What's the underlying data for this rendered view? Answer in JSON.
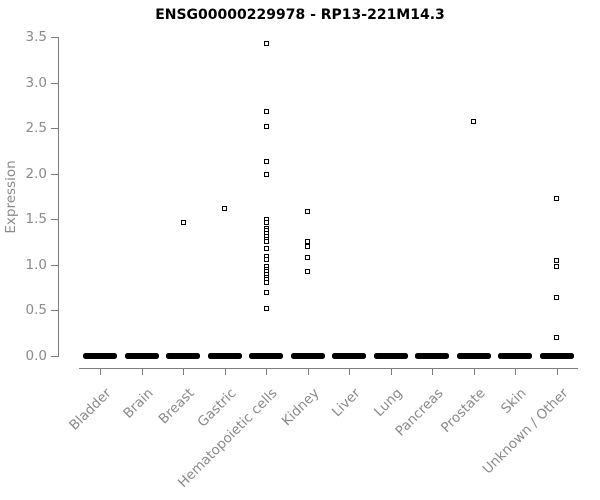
{
  "chart_data": {
    "type": "scatter",
    "title": "ENSG00000229978 - RP13-221M14.3",
    "xlabel": "",
    "ylabel": "Expression",
    "ylim": [
      0,
      3.5
    ],
    "yticks": [
      0.0,
      0.5,
      1.0,
      1.5,
      2.0,
      2.5,
      3.0,
      3.5
    ],
    "grid": false,
    "legend": "none",
    "point_shape": "open-square",
    "point_color": "#000000",
    "axis_color": "#7d7d7d",
    "text_color": "#8a8a8a",
    "note": "each category shows a dense cluster of points at expression 0 forming a solid bar",
    "categories": [
      {
        "label": "Bladder",
        "zero_cluster": true,
        "nonzero_points": []
      },
      {
        "label": "Brain",
        "zero_cluster": true,
        "nonzero_points": []
      },
      {
        "label": "Breast",
        "zero_cluster": true,
        "nonzero_points": [
          1.46
        ]
      },
      {
        "label": "Gastric",
        "zero_cluster": true,
        "nonzero_points": [
          1.61
        ]
      },
      {
        "label": "Hematopoietic cells",
        "zero_cluster": true,
        "nonzero_points": [
          3.43,
          2.68,
          2.52,
          2.13,
          1.99,
          1.5,
          1.46,
          1.4,
          1.37,
          1.34,
          1.31,
          1.28,
          1.25,
          1.18,
          1.09,
          1.05,
          0.98,
          0.95,
          0.92,
          0.89,
          0.86,
          0.83,
          0.8,
          0.69,
          0.52
        ]
      },
      {
        "label": "Kidney",
        "zero_cluster": true,
        "nonzero_points": [
          1.58,
          1.25,
          1.2,
          1.08,
          0.92
        ]
      },
      {
        "label": "Liver",
        "zero_cluster": true,
        "nonzero_points": []
      },
      {
        "label": "Lung",
        "zero_cluster": true,
        "nonzero_points": []
      },
      {
        "label": "Pancreas",
        "zero_cluster": true,
        "nonzero_points": []
      },
      {
        "label": "Prostate",
        "zero_cluster": true,
        "nonzero_points": [
          2.57
        ]
      },
      {
        "label": "Skin",
        "zero_cluster": true,
        "nonzero_points": []
      },
      {
        "label": "Unknown / Other",
        "zero_cluster": true,
        "nonzero_points": [
          1.73,
          1.04,
          0.98,
          0.64,
          0.2
        ]
      }
    ]
  }
}
